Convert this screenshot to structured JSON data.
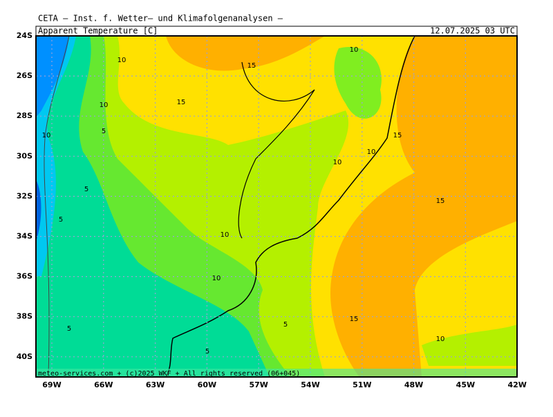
{
  "header": {
    "title": "CETA – Inst. f. Wetter– und Klimafolgenanalysen –",
    "field": "Apparent Temperature [C]",
    "valid_time": "12.07.2025 03 UTC"
  },
  "map": {
    "lat_labels": [
      "24S",
      "26S",
      "28S",
      "30S",
      "32S",
      "34S",
      "36S",
      "38S",
      "40S"
    ],
    "lon_labels": [
      "69W",
      "66W",
      "63W",
      "60W",
      "57W",
      "54W",
      "51W",
      "48W",
      "45W",
      "42W"
    ],
    "contour_labels": [
      "10",
      "10",
      "15",
      "15",
      "10",
      "5",
      "10",
      "15",
      "10",
      "10",
      "5",
      "15",
      "5",
      "10",
      "10",
      "15",
      "5",
      "5",
      "10",
      "5"
    ],
    "footer": "meteo-services.com + (c)2025 WKF + All rights reserved (06+045)"
  }
}
